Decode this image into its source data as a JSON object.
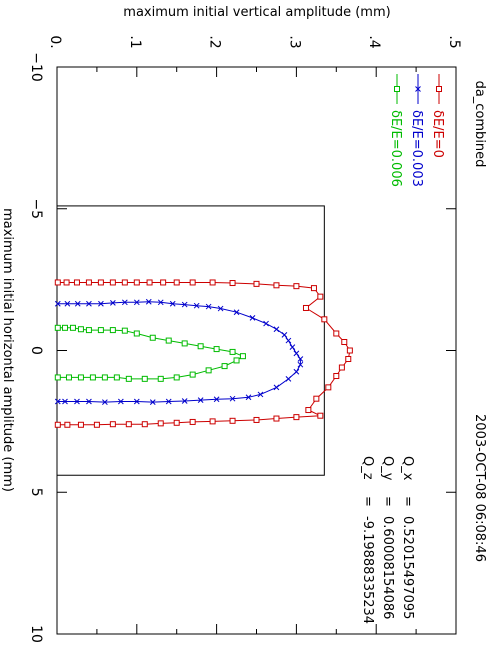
{
  "chart_data": {
    "type": "line",
    "title": "da_combined",
    "date": "2003-OCT-08 06:08:46",
    "xlabel": "maximum initial horizontal amplitude (mm)",
    "ylabel": "maximum initial vertical amplitude (mm)",
    "xlim": [
      -10,
      10
    ],
    "ylim": [
      0,
      0.5
    ],
    "x_ticks": [
      "−10",
      "−5",
      "0",
      "5",
      "10"
    ],
    "y_ticks": [
      "0.",
      ".1",
      ".2",
      ".3",
      ".4",
      ".5"
    ],
    "rect": {
      "x": [
        -5.1,
        4.4
      ],
      "y": [
        0,
        0.335
      ]
    },
    "params": [
      {
        "name": "Q_x",
        "value": "0.52015497095"
      },
      {
        "name": "Q_y",
        "value": "0.60008154086"
      },
      {
        "name": "Q_z",
        "value": "-9.19888335234"
      }
    ],
    "series": [
      {
        "name": "δE/E=0",
        "color": "#cc0000",
        "marker": "square",
        "points": [
          [
            -2.4,
            0.001
          ],
          [
            -2.4,
            0.012
          ],
          [
            -2.4,
            0.025
          ],
          [
            -2.4,
            0.04
          ],
          [
            -2.4,
            0.055
          ],
          [
            -2.4,
            0.07
          ],
          [
            -2.4,
            0.085
          ],
          [
            -2.4,
            0.1
          ],
          [
            -2.4,
            0.116
          ],
          [
            -2.4,
            0.133
          ],
          [
            -2.4,
            0.15
          ],
          [
            -2.4,
            0.17
          ],
          [
            -2.4,
            0.195
          ],
          [
            -2.38,
            0.22
          ],
          [
            -2.35,
            0.25
          ],
          [
            -2.3,
            0.275
          ],
          [
            -2.27,
            0.3
          ],
          [
            -2.2,
            0.322
          ],
          [
            -1.9,
            0.33
          ],
          [
            -1.5,
            0.312
          ],
          [
            -1.1,
            0.335
          ],
          [
            -0.6,
            0.35
          ],
          [
            -0.3,
            0.36
          ],
          [
            0.0,
            0.367
          ],
          [
            0.3,
            0.365
          ],
          [
            0.6,
            0.357
          ],
          [
            0.9,
            0.35
          ],
          [
            1.3,
            0.34
          ],
          [
            1.7,
            0.325
          ],
          [
            2.1,
            0.315
          ],
          [
            2.3,
            0.33
          ],
          [
            2.35,
            0.3
          ],
          [
            2.4,
            0.275
          ],
          [
            2.45,
            0.25
          ],
          [
            2.48,
            0.22
          ],
          [
            2.5,
            0.195
          ],
          [
            2.52,
            0.17
          ],
          [
            2.55,
            0.15
          ],
          [
            2.57,
            0.13
          ],
          [
            2.6,
            0.11
          ],
          [
            2.6,
            0.09
          ],
          [
            2.6,
            0.07
          ],
          [
            2.62,
            0.05
          ],
          [
            2.62,
            0.03
          ],
          [
            2.62,
            0.013
          ],
          [
            2.62,
            0.001
          ]
        ]
      },
      {
        "name": "δE/E=0.003",
        "color": "#0000cc",
        "marker": "x",
        "points": [
          [
            -1.65,
            0.001
          ],
          [
            -1.65,
            0.013
          ],
          [
            -1.65,
            0.026
          ],
          [
            -1.65,
            0.04
          ],
          [
            -1.65,
            0.055
          ],
          [
            -1.68,
            0.07
          ],
          [
            -1.7,
            0.085
          ],
          [
            -1.7,
            0.1
          ],
          [
            -1.72,
            0.115
          ],
          [
            -1.7,
            0.13
          ],
          [
            -1.65,
            0.145
          ],
          [
            -1.62,
            0.16
          ],
          [
            -1.58,
            0.175
          ],
          [
            -1.55,
            0.19
          ],
          [
            -1.48,
            0.205
          ],
          [
            -1.35,
            0.225
          ],
          [
            -1.15,
            0.245
          ],
          [
            -0.95,
            0.262
          ],
          [
            -0.75,
            0.275
          ],
          [
            -0.55,
            0.285
          ],
          [
            -0.35,
            0.29
          ],
          [
            -0.12,
            0.295
          ],
          [
            0.1,
            0.3
          ],
          [
            0.3,
            0.305
          ],
          [
            0.5,
            0.305
          ],
          [
            0.75,
            0.3
          ],
          [
            1.0,
            0.29
          ],
          [
            1.3,
            0.275
          ],
          [
            1.55,
            0.255
          ],
          [
            1.65,
            0.24
          ],
          [
            1.7,
            0.22
          ],
          [
            1.72,
            0.2
          ],
          [
            1.75,
            0.18
          ],
          [
            1.78,
            0.16
          ],
          [
            1.8,
            0.14
          ],
          [
            1.82,
            0.12
          ],
          [
            1.8,
            0.1
          ],
          [
            1.8,
            0.08
          ],
          [
            1.82,
            0.06
          ],
          [
            1.8,
            0.04
          ],
          [
            1.8,
            0.025
          ],
          [
            1.8,
            0.01
          ],
          [
            1.8,
            0.001
          ]
        ]
      },
      {
        "name": "δE/E=0.006",
        "color": "#00bb00",
        "marker": "square",
        "points": [
          [
            -0.8,
            0.001
          ],
          [
            -0.8,
            0.01
          ],
          [
            -0.8,
            0.02
          ],
          [
            -0.75,
            0.03
          ],
          [
            -0.72,
            0.04
          ],
          [
            -0.72,
            0.055
          ],
          [
            -0.72,
            0.07
          ],
          [
            -0.7,
            0.085
          ],
          [
            -0.6,
            0.1
          ],
          [
            -0.45,
            0.12
          ],
          [
            -0.35,
            0.14
          ],
          [
            -0.25,
            0.16
          ],
          [
            -0.15,
            0.18
          ],
          [
            -0.05,
            0.2
          ],
          [
            0.05,
            0.22
          ],
          [
            0.2,
            0.233
          ],
          [
            0.35,
            0.225
          ],
          [
            0.55,
            0.21
          ],
          [
            0.7,
            0.19
          ],
          [
            0.85,
            0.17
          ],
          [
            0.95,
            0.15
          ],
          [
            1.0,
            0.13
          ],
          [
            1.0,
            0.11
          ],
          [
            1.0,
            0.09
          ],
          [
            0.95,
            0.075
          ],
          [
            0.95,
            0.06
          ],
          [
            0.95,
            0.045
          ],
          [
            0.95,
            0.03
          ],
          [
            0.95,
            0.015
          ],
          [
            0.95,
            0.001
          ]
        ]
      }
    ]
  }
}
